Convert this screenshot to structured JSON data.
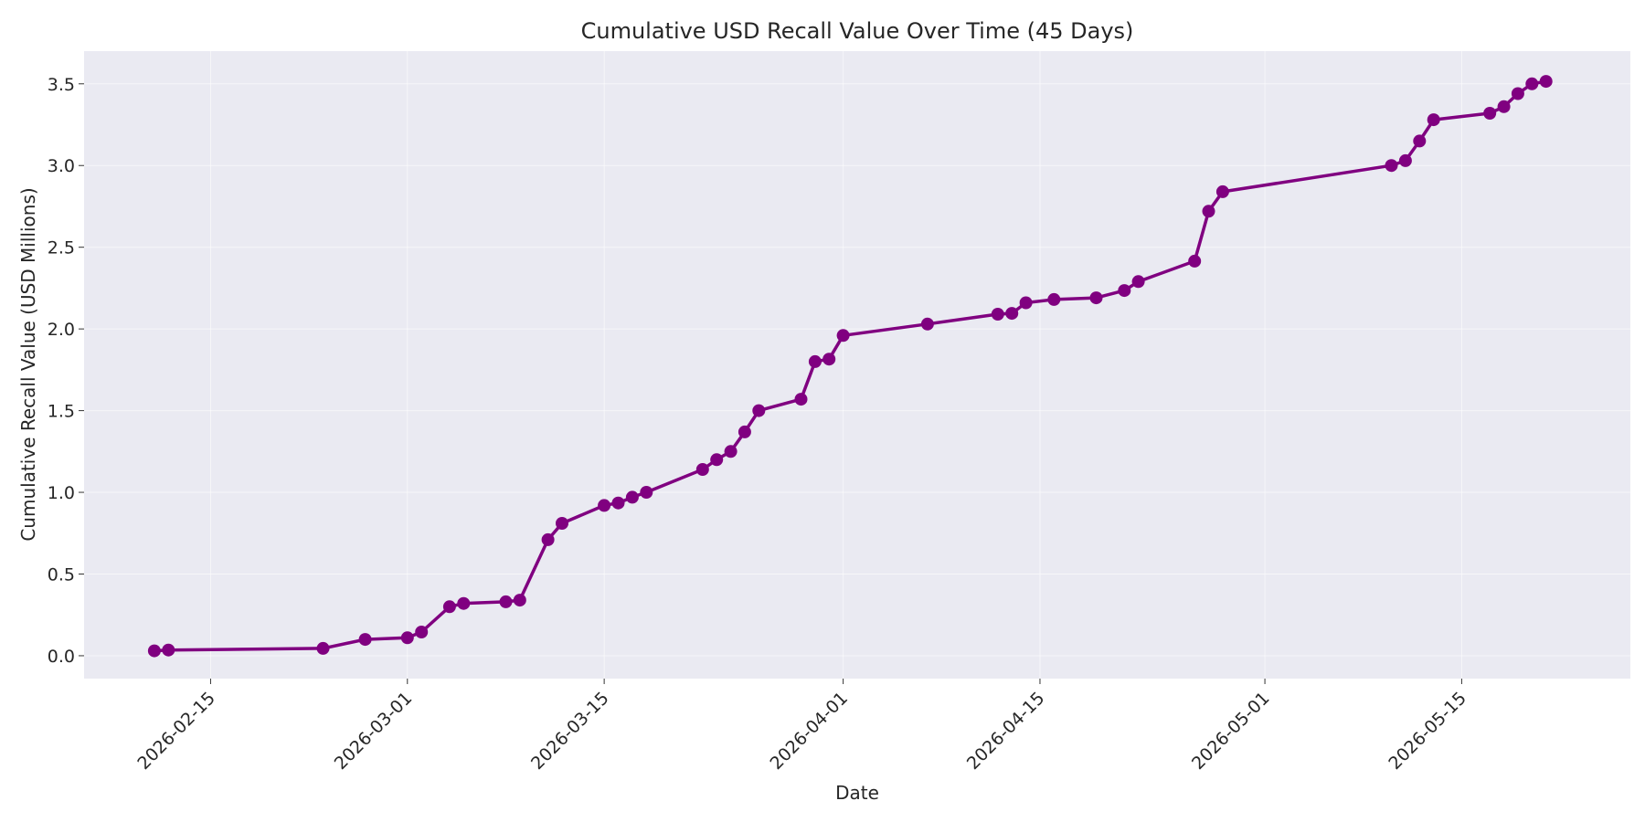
{
  "chart_data": {
    "type": "line",
    "title": "Cumulative USD Recall Value Over Time (45 Days)",
    "xlabel": "Date",
    "ylabel": "Cumulative Recall Value (USD Millions)",
    "xlim": [
      "2026-02-06",
      "2026-05-27"
    ],
    "ylim": [
      -0.14,
      3.7
    ],
    "x_ticks": [
      "2026-02-15",
      "2026-03-01",
      "2026-03-15",
      "2026-04-01",
      "2026-04-15",
      "2026-05-01",
      "2026-05-15"
    ],
    "y_ticks": [
      0.0,
      0.5,
      1.0,
      1.5,
      2.0,
      2.5,
      3.0,
      3.5
    ],
    "y_tick_labels": [
      "0.0",
      "0.5",
      "1.0",
      "1.5",
      "2.0",
      "2.5",
      "3.0",
      "3.5"
    ],
    "grid": true,
    "background": "#eaeaf2",
    "line_color": "#800080",
    "series": [
      {
        "name": "",
        "x": [
          "2026-02-11",
          "2026-02-12",
          "2026-02-23",
          "2026-02-26",
          "2026-03-01",
          "2026-03-02",
          "2026-03-04",
          "2026-03-05",
          "2026-03-08",
          "2026-03-09",
          "2026-03-11",
          "2026-03-12",
          "2026-03-15",
          "2026-03-16",
          "2026-03-17",
          "2026-03-18",
          "2026-03-22",
          "2026-03-23",
          "2026-03-24",
          "2026-03-25",
          "2026-03-26",
          "2026-03-29",
          "2026-03-30",
          "2026-03-31",
          "2026-04-01",
          "2026-04-07",
          "2026-04-12",
          "2026-04-13",
          "2026-04-14",
          "2026-04-16",
          "2026-04-19",
          "2026-04-21",
          "2026-04-22",
          "2026-04-26",
          "2026-04-27",
          "2026-04-28",
          "2026-05-10",
          "2026-05-11",
          "2026-05-12",
          "2026-05-13",
          "2026-05-17",
          "2026-05-18",
          "2026-05-19",
          "2026-05-20",
          "2026-05-21"
        ],
        "values": [
          0.03,
          0.035,
          0.045,
          0.1,
          0.11,
          0.145,
          0.3,
          0.32,
          0.33,
          0.34,
          0.71,
          0.81,
          0.92,
          0.935,
          0.97,
          1.0,
          1.14,
          1.2,
          1.25,
          1.37,
          1.5,
          1.57,
          1.8,
          1.815,
          1.96,
          2.03,
          2.09,
          2.095,
          2.16,
          2.18,
          2.19,
          2.235,
          2.29,
          2.415,
          2.72,
          2.84,
          3.0,
          3.03,
          3.15,
          3.28,
          3.32,
          3.36,
          3.44,
          3.5,
          3.515
        ]
      }
    ]
  }
}
